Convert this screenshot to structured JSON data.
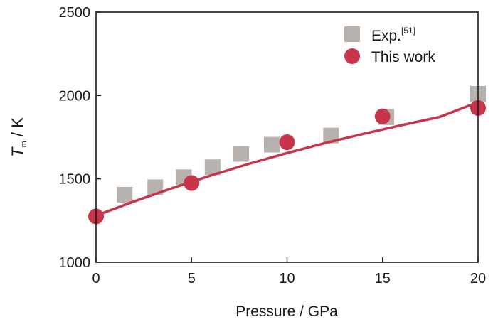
{
  "chart_data": {
    "type": "scatter",
    "xlabel": "Pressure / GPa",
    "ylabel": {
      "symbol": "T",
      "subscript": "m",
      "unit": " / K"
    },
    "xlim": [
      0,
      20
    ],
    "ylim": [
      1000,
      2500
    ],
    "xticks": [
      "0",
      "5",
      "10",
      "15",
      "20"
    ],
    "yticks": [
      "1000",
      "1500",
      "2000",
      "2500"
    ],
    "grid": false,
    "legend_position": "top-right",
    "series": [
      {
        "name": "Exp.",
        "name_superscript": "[51]",
        "marker": "square",
        "color": "#b8b2ae",
        "x": [
          1.5,
          3.1,
          4.6,
          6.1,
          7.6,
          9.2,
          12.3,
          15.2,
          20.0
        ],
        "y": [
          1405,
          1450,
          1510,
          1570,
          1650,
          1705,
          1760,
          1870,
          2010
        ]
      },
      {
        "name": "This work",
        "marker": "circle",
        "color": "#c8354a",
        "x": [
          0,
          5,
          10,
          15,
          20
        ],
        "y": [
          1275,
          1475,
          1720,
          1875,
          1925
        ]
      },
      {
        "name": "",
        "marker": "line",
        "color": "#c8354a",
        "x": [
          0,
          2,
          4,
          6,
          8,
          10,
          12,
          14,
          16,
          18,
          20
        ],
        "y": [
          1280,
          1365,
          1445,
          1520,
          1590,
          1655,
          1715,
          1770,
          1822,
          1872,
          1960
        ]
      }
    ]
  }
}
